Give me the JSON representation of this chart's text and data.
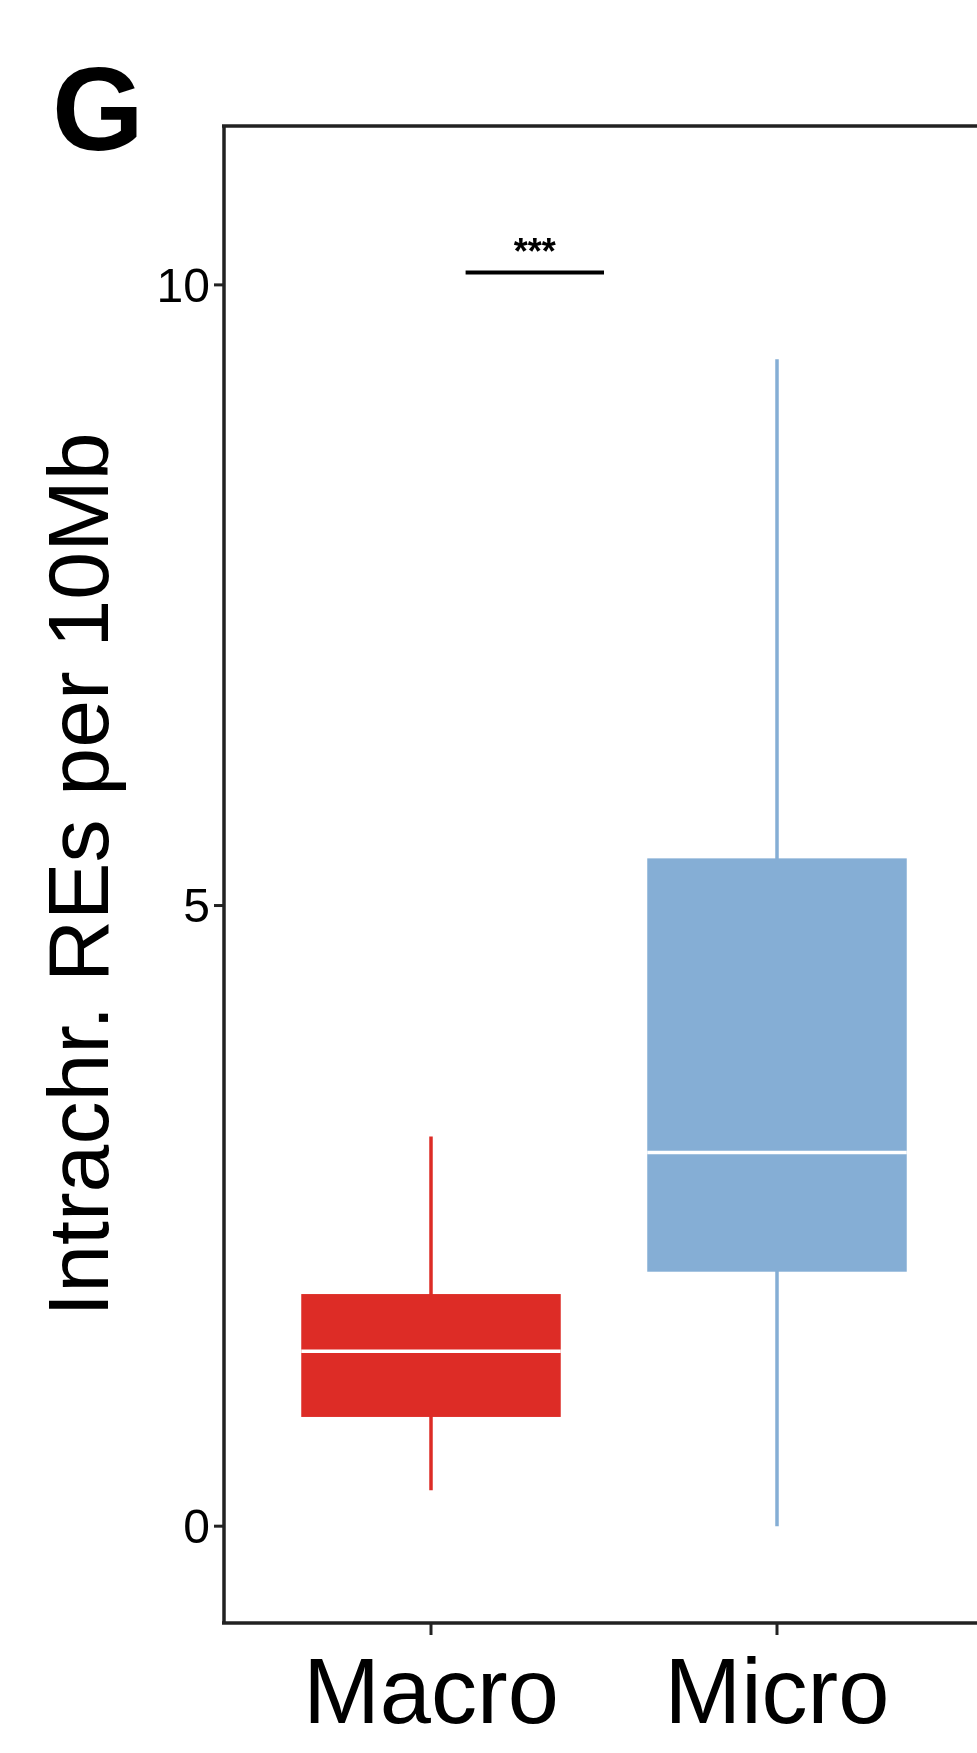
{
  "chart_data": {
    "type": "box",
    "title": "G",
    "ylabel": "Intrachr. REs per 10Mb",
    "categories": [
      "Macro",
      "Micro"
    ],
    "colors": [
      "#dd2c26",
      "#85aed5"
    ],
    "boxes": [
      {
        "low": 0.29,
        "q1": 0.88,
        "median": 1.41,
        "q3": 1.87,
        "high": 3.14
      },
      {
        "low": 0,
        "q1": 2.05,
        "median": 3.01,
        "q3": 5.38,
        "high": 9.4
      }
    ],
    "ylim": [
      -0.78,
      11.28
    ],
    "yticks": [
      0,
      5,
      10
    ],
    "grid": false,
    "annotations": [
      "***"
    ]
  }
}
